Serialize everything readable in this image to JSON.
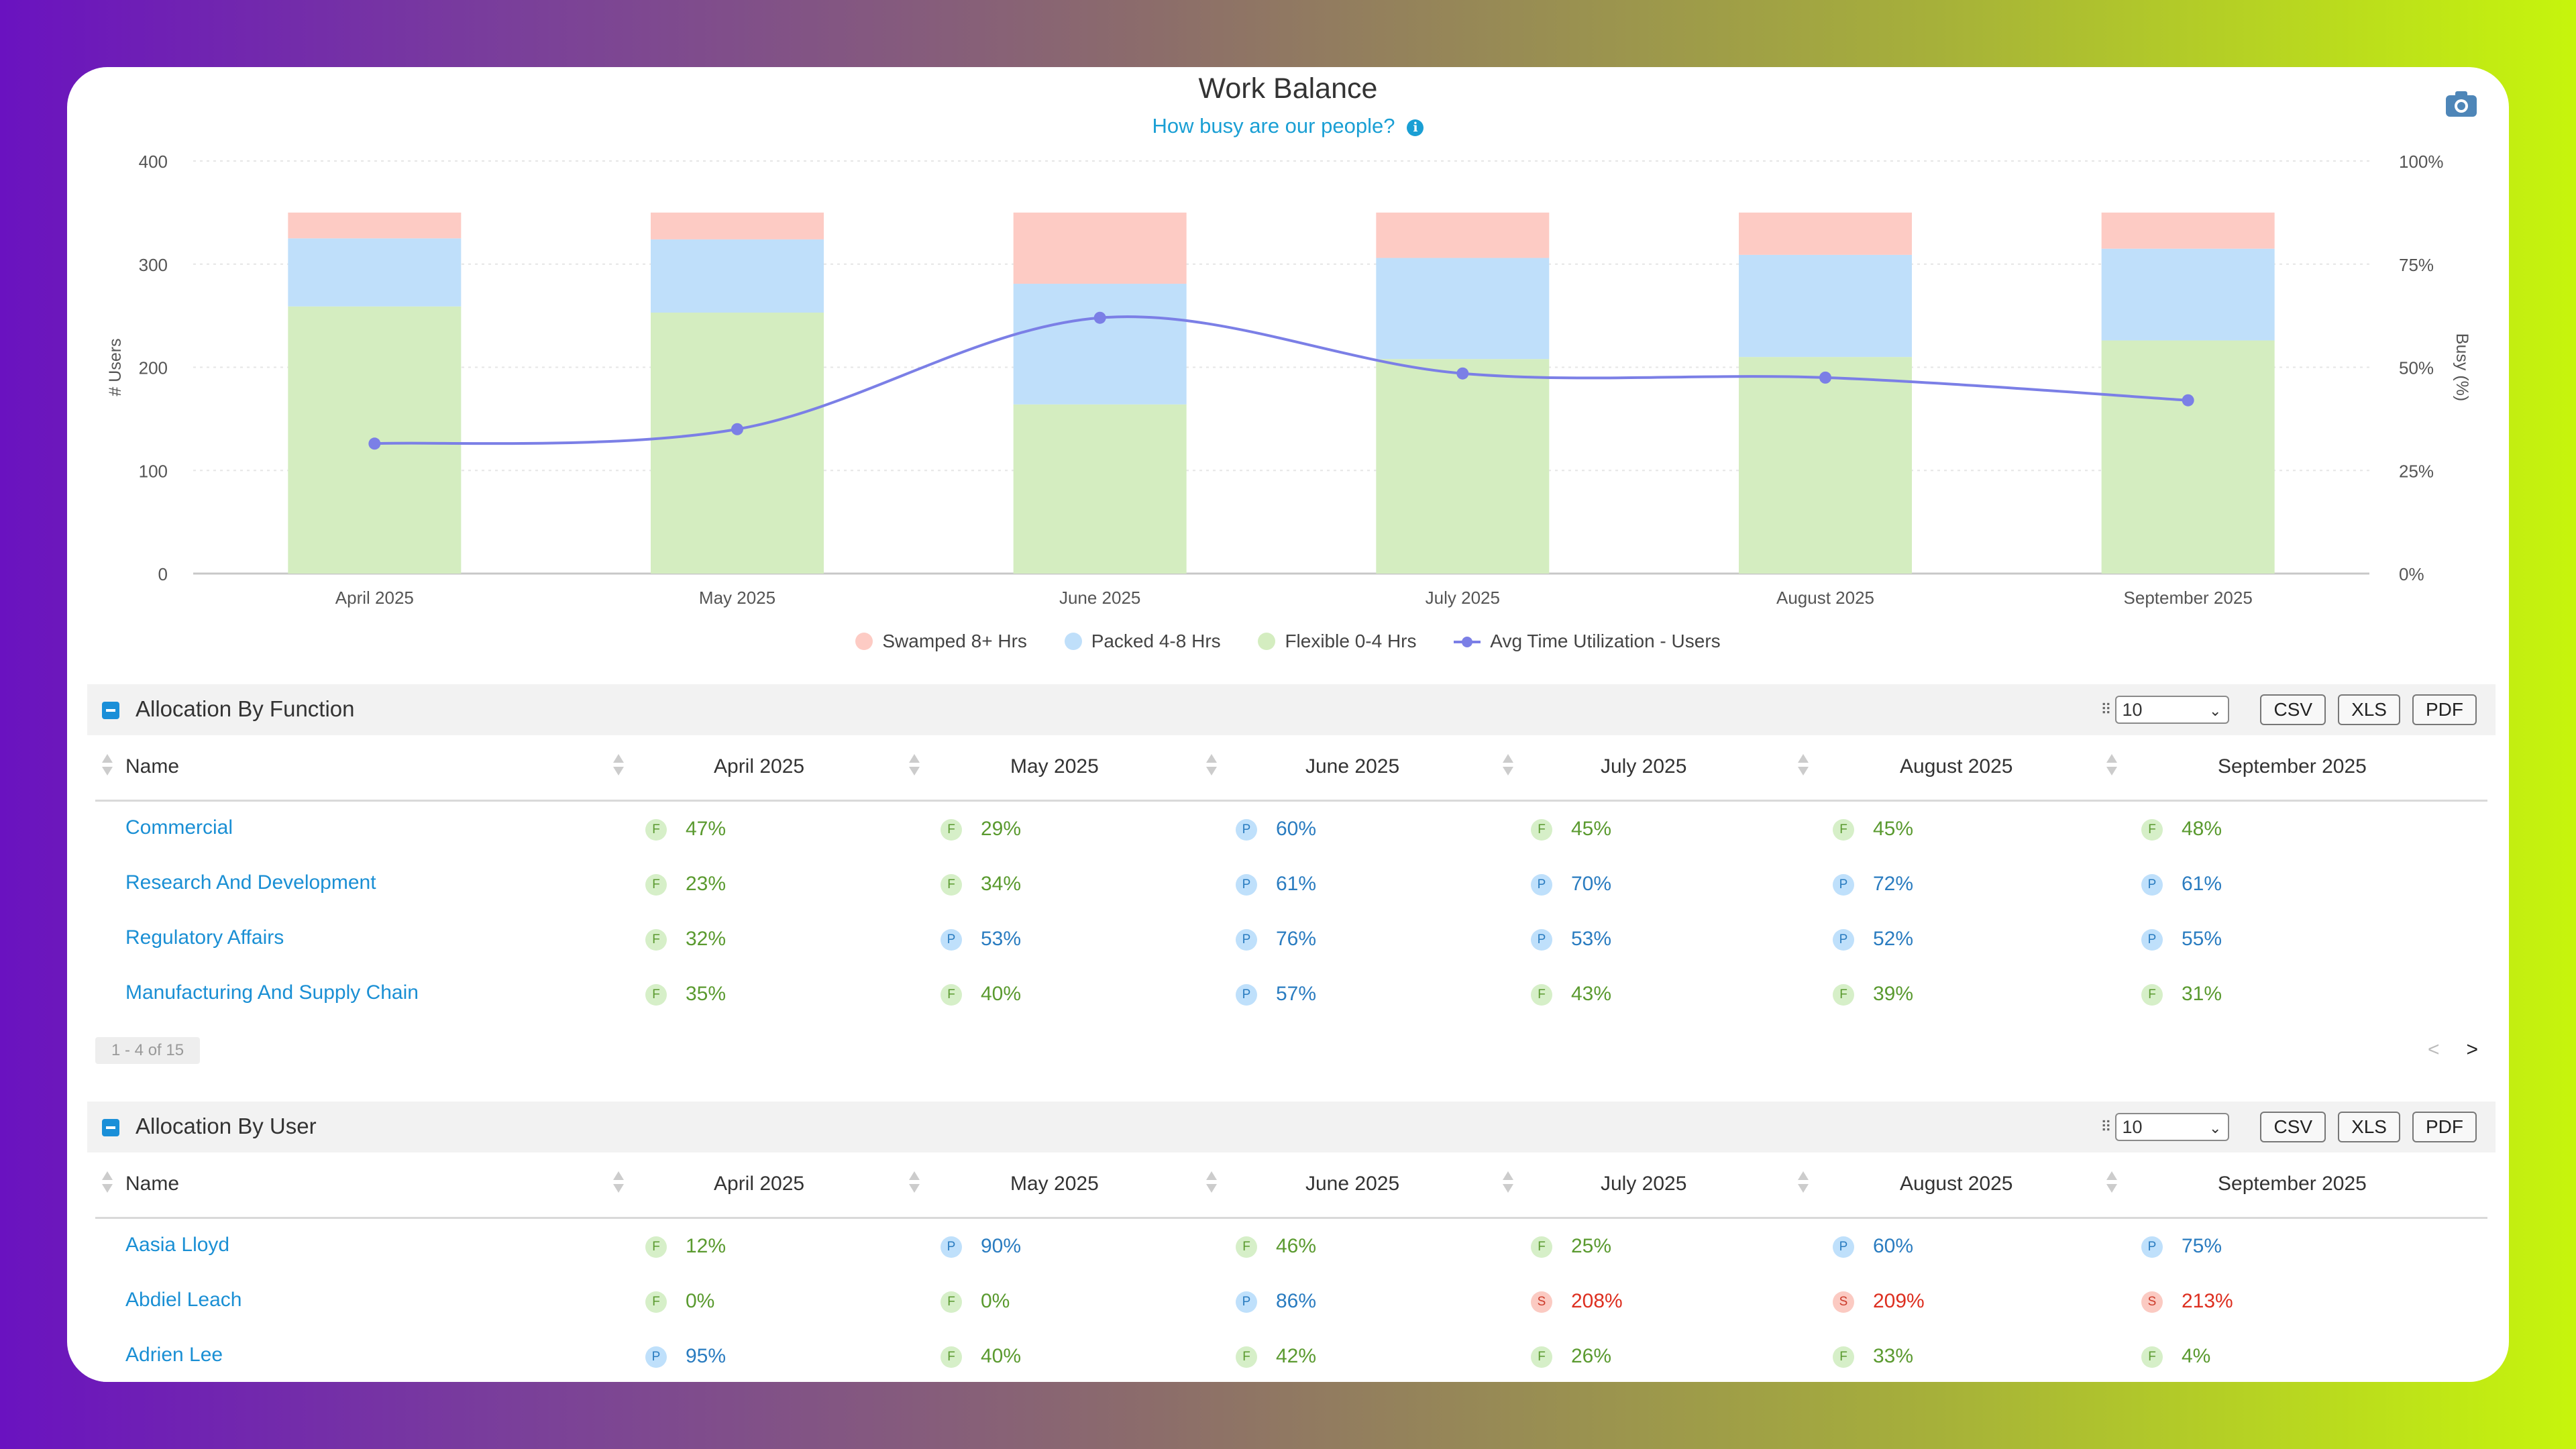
{
  "chart": {
    "title": "Work Balance",
    "subtitle": "How busy are our people?",
    "info_icon": "i"
  },
  "chart_data": {
    "type": "bar",
    "stacked": true,
    "categories": [
      "April 2025",
      "May 2025",
      "June 2025",
      "July 2025",
      "August 2025",
      "September 2025"
    ],
    "series": [
      {
        "name": "Flexible 0-4 Hrs",
        "color": "#d4edc0",
        "values": [
          259,
          253,
          164,
          208,
          210,
          226
        ]
      },
      {
        "name": "Packed 4-8 Hrs",
        "color": "#bfdffa",
        "values": [
          66,
          71,
          117,
          98,
          99,
          89
        ]
      },
      {
        "name": "Swamped 8+ Hrs",
        "color": "#fdcbc4",
        "values": [
          25,
          26,
          69,
          44,
          41,
          35
        ]
      }
    ],
    "line_series": {
      "name": "Avg Time Utilization - Users",
      "color": "#7b7fe6",
      "values": [
        31.5,
        35,
        62,
        48.5,
        47.5,
        42
      ]
    },
    "ylabel": "# Users",
    "ylim": [
      0,
      400
    ],
    "yticks": [
      "0",
      "100",
      "200",
      "300",
      "400"
    ],
    "y2label": "Busy (%)",
    "y2lim": [
      0,
      100
    ],
    "y2ticks": [
      "0%",
      "25%",
      "50%",
      "75%",
      "100%"
    ],
    "grid": true,
    "legend": "bottom"
  },
  "legend": {
    "swamped": "Swamped 8+ Hrs",
    "packed": "Packed 4-8 Hrs",
    "flexible": "Flexible 0-4 Hrs",
    "avg": "Avg Time Utilization - Users"
  },
  "sections": {
    "function": {
      "title": "Allocation By Function",
      "page_size": "10",
      "csv": "CSV",
      "xls": "XLS",
      "pdf": "PDF",
      "columns": [
        "Name",
        "April 2025",
        "May 2025",
        "June 2025",
        "July 2025",
        "August 2025",
        "September 2025"
      ],
      "rows": [
        {
          "name": "Commercial",
          "cells": [
            [
              "F",
              "47%"
            ],
            [
              "F",
              "29%"
            ],
            [
              "P",
              "60%"
            ],
            [
              "F",
              "45%"
            ],
            [
              "F",
              "45%"
            ],
            [
              "F",
              "48%"
            ]
          ]
        },
        {
          "name": "Research And Development",
          "cells": [
            [
              "F",
              "23%"
            ],
            [
              "F",
              "34%"
            ],
            [
              "P",
              "61%"
            ],
            [
              "P",
              "70%"
            ],
            [
              "P",
              "72%"
            ],
            [
              "P",
              "61%"
            ]
          ]
        },
        {
          "name": "Regulatory Affairs",
          "cells": [
            [
              "F",
              "32%"
            ],
            [
              "P",
              "53%"
            ],
            [
              "P",
              "76%"
            ],
            [
              "P",
              "53%"
            ],
            [
              "P",
              "52%"
            ],
            [
              "P",
              "55%"
            ]
          ]
        },
        {
          "name": "Manufacturing And Supply Chain",
          "cells": [
            [
              "F",
              "35%"
            ],
            [
              "F",
              "40%"
            ],
            [
              "P",
              "57%"
            ],
            [
              "F",
              "43%"
            ],
            [
              "F",
              "39%"
            ],
            [
              "F",
              "31%"
            ]
          ]
        }
      ],
      "pager": "1 - 4 of 15",
      "prev": "<",
      "next": ">"
    },
    "user": {
      "title": "Allocation By User",
      "page_size": "10",
      "csv": "CSV",
      "xls": "XLS",
      "pdf": "PDF",
      "columns": [
        "Name",
        "April 2025",
        "May 2025",
        "June 2025",
        "July 2025",
        "August 2025",
        "September 2025"
      ],
      "rows": [
        {
          "name": "Aasia Lloyd",
          "cells": [
            [
              "F",
              "12%"
            ],
            [
              "P",
              "90%"
            ],
            [
              "F",
              "46%"
            ],
            [
              "F",
              "25%"
            ],
            [
              "P",
              "60%"
            ],
            [
              "P",
              "75%"
            ]
          ]
        },
        {
          "name": "Abdiel Leach",
          "cells": [
            [
              "F",
              "0%"
            ],
            [
              "F",
              "0%"
            ],
            [
              "P",
              "86%"
            ],
            [
              "S",
              "208%"
            ],
            [
              "S",
              "209%"
            ],
            [
              "S",
              "213%"
            ]
          ]
        },
        {
          "name": "Adrien Lee",
          "cells": [
            [
              "P",
              "95%"
            ],
            [
              "F",
              "40%"
            ],
            [
              "F",
              "42%"
            ],
            [
              "F",
              "26%"
            ],
            [
              "F",
              "33%"
            ],
            [
              "F",
              "4%"
            ]
          ]
        }
      ]
    }
  },
  "icons": {
    "camera": "camera-icon",
    "collapse": "minus-square-icon",
    "grip": "grip-icon",
    "sort": "sort-icon",
    "select": "chevron-down-icon"
  }
}
